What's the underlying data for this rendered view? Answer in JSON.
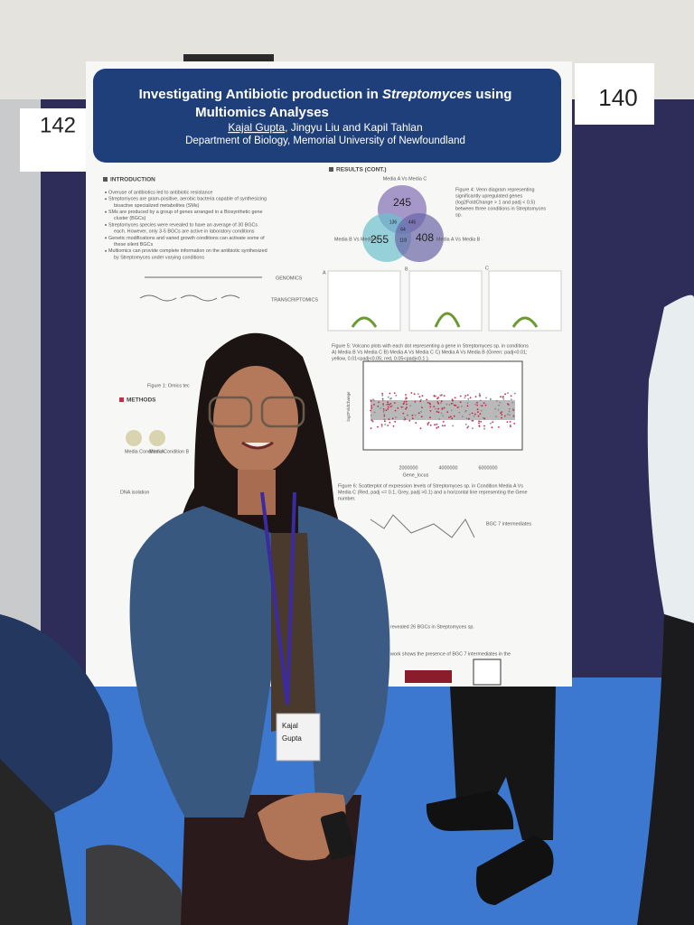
{
  "board_numbers": {
    "left": "142",
    "right": "140"
  },
  "poster": {
    "title_line_1_a": "Investigating Antibiotic production in",
    "title_line_1_b": "Streptomyces",
    "title_line_1_c": "using",
    "title_line_2": "Multiomics Analyses",
    "presenter": "Kajal Gupta",
    "coauthors": ", Jingyu Liu and Kapil Tahlan",
    "affiliation": "Department of Biology, Memorial University of Newfoundland",
    "introduction": {
      "heading": "INTRODUCTION",
      "bullets": [
        "Overuse of antibiotics led to antibiotic resistance",
        "Streptomyces are gram-positive, aerobic bacteria capable of synthesizing",
        "bioactive specialized metabolites (SMs)",
        "SMs are produced by a group of genes arranged in a Biosynthetic gene",
        "cluster (BGCs)",
        "Streptomyces species were revealed to have an average of 30 BGCs",
        "each. However, only 3-5 BGCs are active in laboratory conditions",
        "Genetic modifications and varied growth conditions can activate some of",
        "these silent BGCs",
        "Multiomics can provide complete information on the antibiotic synthesized",
        "by Streptomyces under varying conditions"
      ],
      "omics_labels": [
        "GENOMICS",
        "TRANSCRIPTOMICS"
      ],
      "figure_1_caption": "Figure 1: Omics tec"
    },
    "methods": {
      "heading": "METHODS",
      "labels": [
        "Media Condition A",
        "Media Condition B",
        "DNA isolation"
      ]
    },
    "results": {
      "heading": "RESULTS (CONT.)",
      "venn": {
        "top_label": "Media A Vs Media C",
        "left_label": "Media B Vs Media C",
        "right_label": "Media A Vs Media B",
        "counts": {
          "top": 245,
          "left": 255,
          "right": 408,
          "top_left": 136,
          "top_right": 445,
          "left_right": 118,
          "center": 64
        }
      },
      "figure_4_caption": [
        "Figure 4: Venn diagram representing",
        "significantly upregulated genes",
        "(log2FoldChange > 1 and padj < 0.5)",
        "between three conditions in Streptomyces",
        "sp."
      ],
      "volcano_panels": [
        "A",
        "B",
        "C"
      ],
      "figure_5_caption": [
        "Figure 5: Volcano plots with each dot representing a gene in Streptomyces sp. in conditions",
        "A) Media B Vs Media C B) Media A Vs Media C C) Media A Vs Media B (Green: padj<0.01;",
        "yellow, 0.01<padj<0.05; red, 0.05<padj<0.1 )."
      ],
      "scatter": {
        "y_label": "log2FoldChange",
        "x_label": "Gene_locus",
        "x_ticks": [
          "2000000",
          "4000000",
          "6000000"
        ]
      },
      "figure_6_caption": [
        "Figure 6: Scatterplot of expression levels of Streptomyces sp. in Condition Media A Vs",
        "Media C (Red, padj <= 0.1, Grey, padj >0.1) and a horizontal line representing the Gene",
        "number."
      ],
      "network_label": "BGC 7 intermediates",
      "conclusion_lines": [
        "revealed 26 BGCs in Streptomyces sp.",
        "work shows the presence of BGC 7 intermediates in the"
      ]
    }
  },
  "badge": {
    "first": "Kajal",
    "last": "Gupta"
  }
}
